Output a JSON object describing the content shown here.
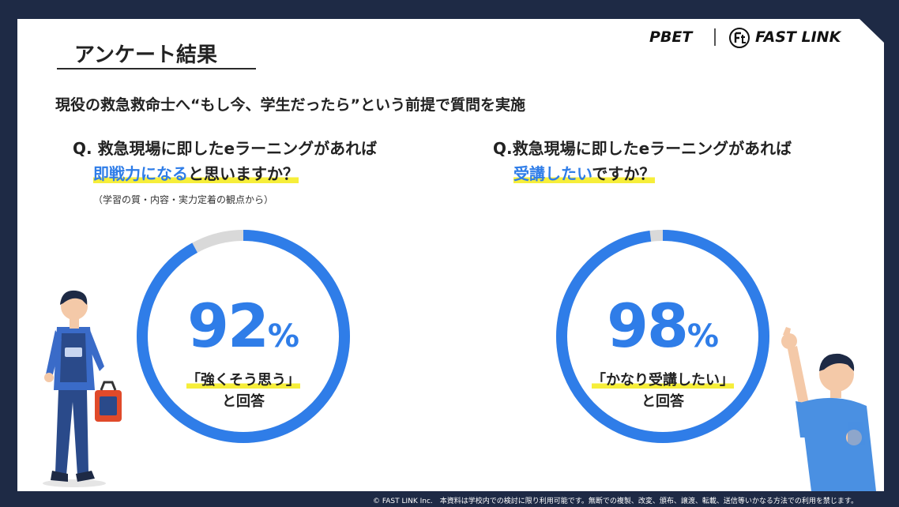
{
  "title": "アンケート結果",
  "brand": {
    "pbet": "PBET",
    "fastlink": "FAST LINK"
  },
  "subtitle": "現役の救急救命士へ“もし今、学生だったら”という前提で質問を実施",
  "q1": {
    "line1": "Q. 救急現場に即したeラーニングがあれば",
    "hl": "即戦力になる",
    "rest": "と思いますか？",
    "note": "（学習の質・内容・実力定着の観点から）",
    "percent": "92",
    "sym": "%",
    "answer": "「強くそう思う」",
    "answer2": "と回答"
  },
  "q2": {
    "line1": "Q.救急現場に即したeラーニングがあれば",
    "hl": "受講したい",
    "rest": "ですか？",
    "percent": "98",
    "sym": "%",
    "answer": "「かなり受講したい」",
    "answer2": "と回答"
  },
  "chart_data": [
    {
      "type": "pie",
      "categories": [
        "強くそう思う",
        ""
      ],
      "values": [
        92,
        8
      ],
      "colors": [
        "#2f7de8",
        "#d9d9d9"
      ]
    },
    {
      "type": "pie",
      "categories": [
        "かなり受講したい",
        ""
      ],
      "values": [
        98,
        2
      ],
      "colors": [
        "#2f7de8",
        "#d9d9d9"
      ]
    }
  ],
  "footer": "© FAST LINK Inc.　本資料は学校内での検討に限り利用可能です。無断での複製、改変、頒布、譲渡、転載、送信等いかなる方法での利用を禁じます。"
}
